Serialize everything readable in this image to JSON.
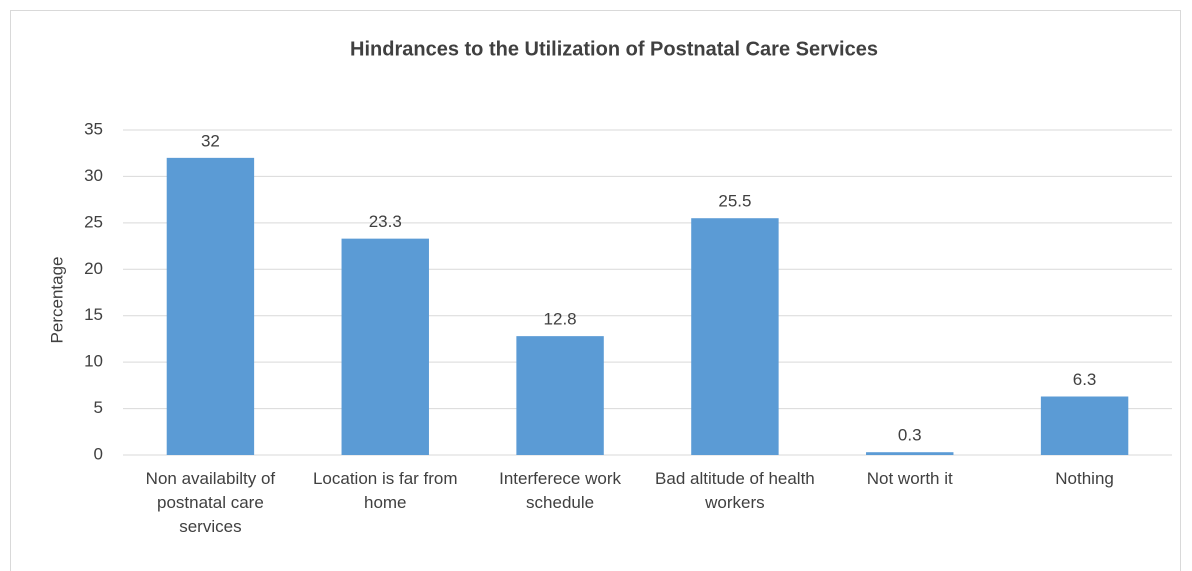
{
  "chart_data": {
    "type": "bar",
    "title": "Hindrances to the Utilization of Postnatal Care Services",
    "y_label": "Percentage",
    "categories": [
      "Non availabilty of postnatal care services",
      "Location is far from home",
      "Interferece work schedule",
      "Bad altitude of health workers",
      "Not worth it",
      "Nothing"
    ],
    "values": [
      32,
      23.3,
      12.8,
      25.5,
      0.3,
      6.3
    ],
    "color": "#5b9bd5",
    "ylim": [
      0,
      35
    ],
    "yticks": [
      0,
      5,
      10,
      15,
      20,
      25,
      30,
      35
    ],
    "grid": true
  }
}
